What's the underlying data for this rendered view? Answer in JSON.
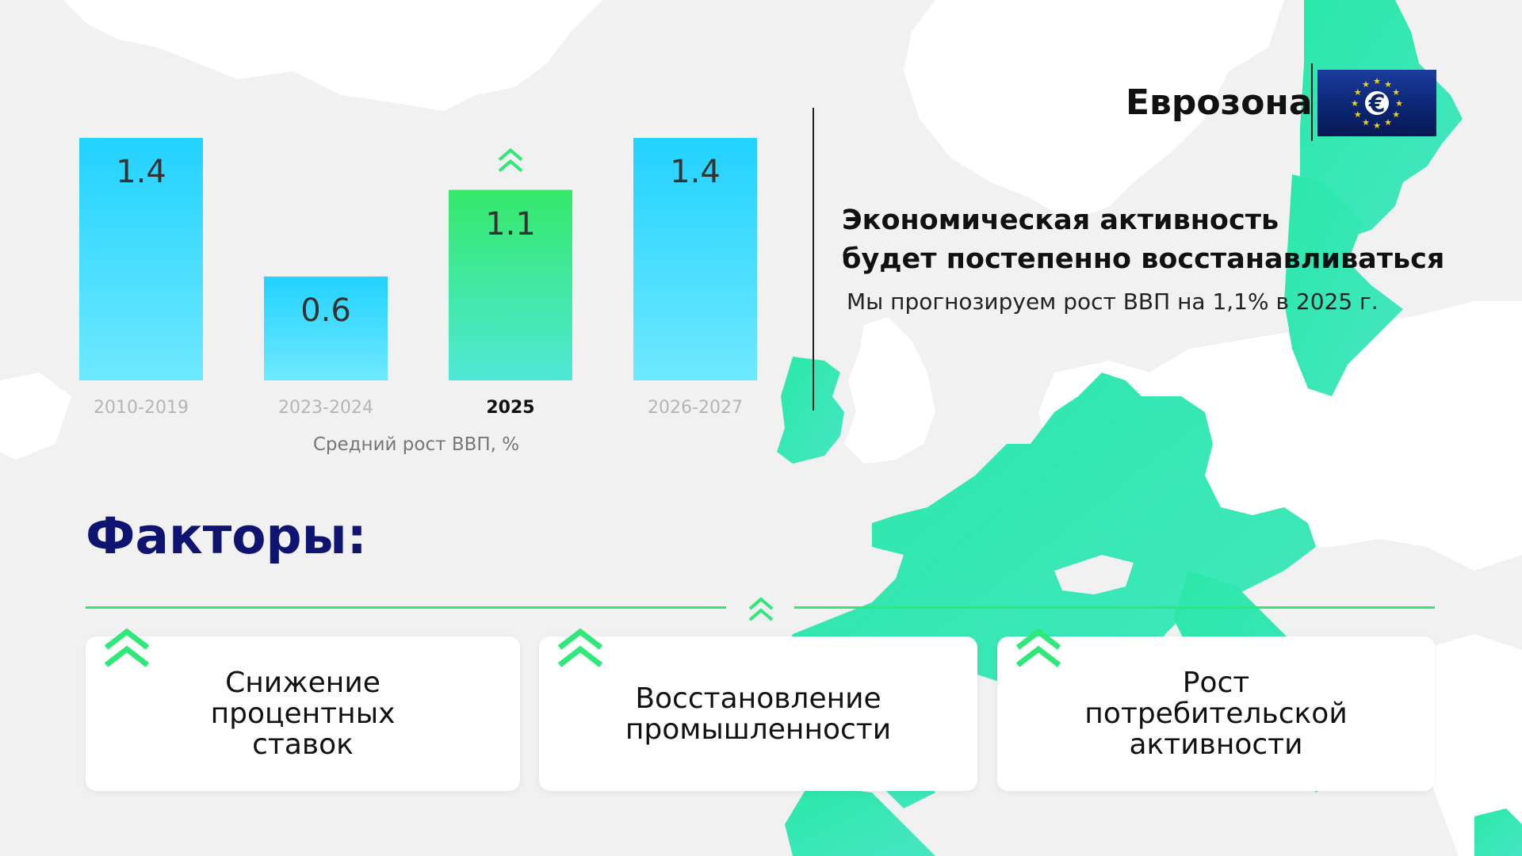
{
  "chart_data": {
    "type": "bar",
    "categories": [
      "2010-2019",
      "2023-2024",
      "2025",
      "2026-2027"
    ],
    "values": [
      1.4,
      0.6,
      1.1,
      1.4
    ],
    "value_labels": [
      "1.4",
      "0.6",
      "1.1",
      "1.4"
    ],
    "highlight_index": 2,
    "xlabel": "Средний рост ВВП, %",
    "ylim": [
      0,
      1.4
    ],
    "colors": {
      "default_top": "#22d2ff",
      "default_bottom": "#6ee9ff",
      "highlight_top": "#36e86a",
      "highlight_bottom": "#4ee8d8"
    }
  },
  "header": {
    "region": "Еврозона",
    "flag_icon": "euro-flag-icon"
  },
  "headline": {
    "line1": "Экономическая активность",
    "line2": "будет постепенно восстанавливаться"
  },
  "subtext": "Мы прогнозируем рост ВВП на 1,1% в 2025 г.",
  "factors": {
    "title": "Факторы:",
    "items": [
      {
        "label": "Снижение\nпроцентных\nставок",
        "icon": "chevron-up-icon"
      },
      {
        "label": "Восстановление\nпромышленности",
        "icon": "chevron-up-icon"
      },
      {
        "label": "Рост\nпотребительской\nактивности",
        "icon": "chevron-up-icon"
      }
    ]
  },
  "colors": {
    "accent_green": "#2ee87a",
    "title_navy": "#0e1470",
    "map_green": "#2ae8a8",
    "map_land": "#ffffff"
  }
}
